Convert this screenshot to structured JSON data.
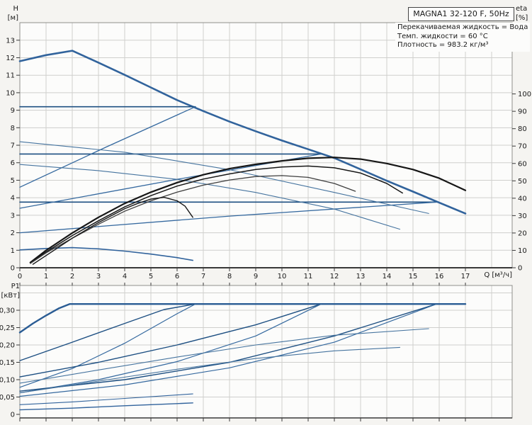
{
  "header": {
    "title": "MAGNA1 32-120 F, 50Hz",
    "info_lines": [
      "Перекачиваемая жидкость = Вода",
      "Темп. жидкости = 60 °C",
      "Плотность = 983.2 кг/м³"
    ]
  },
  "chart_data": [
    {
      "id": "hq",
      "type": "line",
      "title": "Pump head / efficiency curves",
      "x_axis": {
        "label": "Q [м³/ч]",
        "range": [
          0,
          18.8
        ],
        "ticks": [
          0,
          1,
          2,
          3,
          4,
          5,
          6,
          7,
          8,
          9,
          10,
          11,
          12,
          13,
          14,
          15,
          16,
          17
        ],
        "show_labels": true
      },
      "y_left": {
        "label": "H",
        "unit": "[м]",
        "range": [
          0,
          14
        ],
        "ticks": [
          [
            0,
            "0"
          ],
          [
            1,
            "1"
          ],
          [
            2,
            "2"
          ],
          [
            3,
            "3"
          ],
          [
            4,
            "4"
          ],
          [
            5,
            "5"
          ],
          [
            6,
            "6"
          ],
          [
            7,
            "7"
          ],
          [
            8,
            "8"
          ],
          [
            9,
            "9"
          ],
          [
            10,
            "10"
          ],
          [
            11,
            "11"
          ],
          [
            12,
            "12"
          ],
          [
            13,
            "13"
          ]
        ]
      },
      "y_right": {
        "label": "eta",
        "unit": "[%]",
        "range": [
          0,
          141
        ],
        "ticks": [
          [
            0,
            "0"
          ],
          [
            10,
            "10"
          ],
          [
            20,
            "20"
          ],
          [
            30,
            "30"
          ],
          [
            40,
            "40"
          ],
          [
            50,
            "50"
          ],
          [
            60,
            "60"
          ],
          [
            70,
            "70"
          ],
          [
            80,
            "80"
          ],
          [
            90,
            "90"
          ],
          [
            100,
            "100"
          ]
        ]
      },
      "grid": true,
      "series": [
        {
          "name": "max-speed",
          "axis": "left",
          "color": "#31639c",
          "width": 2.6,
          "points": [
            [
              0,
              11.8
            ],
            [
              1,
              12.15
            ],
            [
              2,
              12.4
            ],
            [
              3,
              11.72
            ],
            [
              4,
              11.02
            ],
            [
              5,
              10.3
            ],
            [
              6,
              9.58
            ],
            [
              7,
              8.95
            ],
            [
              8,
              8.35
            ],
            [
              9,
              7.8
            ],
            [
              10,
              7.27
            ],
            [
              11,
              6.77
            ],
            [
              12,
              6.27
            ],
            [
              13,
              5.62
            ],
            [
              14,
              4.97
            ],
            [
              15,
              4.35
            ],
            [
              16,
              3.72
            ],
            [
              17,
              3.1
            ]
          ]
        },
        {
          "name": "min-speed",
          "axis": "left",
          "color": "#31639c",
          "width": 1.6,
          "points": [
            [
              0,
              1.02
            ],
            [
              1,
              1.1
            ],
            [
              2,
              1.15
            ],
            [
              3,
              1.08
            ],
            [
              4,
              0.95
            ],
            [
              5,
              0.78
            ],
            [
              6,
              0.58
            ],
            [
              6.6,
              0.42
            ]
          ]
        },
        {
          "name": "const-pressure-9.2",
          "axis": "left",
          "color": "#1d4f82",
          "width": 1.6,
          "points": [
            [
              0,
              9.2
            ],
            [
              6.7,
              9.2
            ]
          ]
        },
        {
          "name": "const-pressure-6.5",
          "axis": "left",
          "color": "#1d4f82",
          "width": 1.6,
          "points": [
            [
              0,
              6.5
            ],
            [
              11.5,
              6.5
            ]
          ]
        },
        {
          "name": "const-pressure-3.75",
          "axis": "left",
          "color": "#1d4f82",
          "width": 1.6,
          "points": [
            [
              0,
              3.75
            ],
            [
              15.9,
              3.75
            ]
          ]
        },
        {
          "name": "prop-pressure-9.2",
          "axis": "left",
          "color": "#35699f",
          "width": 1.3,
          "points": [
            [
              0,
              4.6
            ],
            [
              3.3,
              6.9
            ],
            [
              6.7,
              9.2
            ]
          ]
        },
        {
          "name": "prop-pressure-6.5",
          "axis": "left",
          "color": "#35699f",
          "width": 1.3,
          "points": [
            [
              0,
              3.4
            ],
            [
              6,
              5.05
            ],
            [
              11.5,
              6.5
            ]
          ]
        },
        {
          "name": "prop-pressure-3.75",
          "axis": "left",
          "color": "#35699f",
          "width": 1.3,
          "points": [
            [
              0,
              2.0
            ],
            [
              8,
              2.95
            ],
            [
              15.9,
              3.75
            ]
          ]
        },
        {
          "name": "speed-curve-ii",
          "axis": "left",
          "color": "#46749f",
          "width": 1.1,
          "points": [
            [
              0,
              5.9
            ],
            [
              3,
              5.55
            ],
            [
              6,
              5.05
            ],
            [
              9,
              4.3
            ],
            [
              12,
              3.35
            ],
            [
              14.5,
              2.2
            ]
          ]
        },
        {
          "name": "speed-curve-iii",
          "axis": "left",
          "color": "#46749f",
          "width": 1.1,
          "points": [
            [
              0,
              7.2
            ],
            [
              4,
              6.6
            ],
            [
              8,
              5.6
            ],
            [
              12,
              4.3
            ],
            [
              15.6,
              3.1
            ]
          ]
        },
        {
          "name": "efficiency-max",
          "axis": "right",
          "color": "#161616",
          "width": 2.2,
          "points": [
            [
              0.4,
              3
            ],
            [
              1,
              10
            ],
            [
              2,
              20
            ],
            [
              3,
              29
            ],
            [
              4,
              37
            ],
            [
              5,
              43.5
            ],
            [
              6,
              49
            ],
            [
              7,
              53.5
            ],
            [
              8,
              57
            ],
            [
              9,
              59.5
            ],
            [
              10,
              61.5
            ],
            [
              11,
              63
            ],
            [
              12,
              63.5
            ],
            [
              13,
              62.5
            ],
            [
              14,
              60
            ],
            [
              15,
              56.5
            ],
            [
              16,
              51.5
            ],
            [
              17,
              44.5
            ]
          ]
        },
        {
          "name": "efficiency-2",
          "axis": "right",
          "color": "#161616",
          "width": 1.5,
          "points": [
            [
              0.4,
              3
            ],
            [
              1,
              9
            ],
            [
              2,
              18.5
            ],
            [
              3,
              27
            ],
            [
              4,
              35
            ],
            [
              5,
              41.5
            ],
            [
              6,
              47
            ],
            [
              7,
              51
            ],
            [
              8,
              54
            ],
            [
              9,
              56.5
            ],
            [
              10,
              58
            ],
            [
              11,
              58.5
            ],
            [
              12,
              57.5
            ],
            [
              13,
              54.5
            ],
            [
              14,
              48.5
            ],
            [
              14.6,
              43
            ]
          ]
        },
        {
          "name": "efficiency-3",
          "axis": "right",
          "color": "#3f3f3f",
          "width": 1.3,
          "points": [
            [
              0.4,
              2.5
            ],
            [
              1,
              8.5
            ],
            [
              2,
              17
            ],
            [
              3,
              25
            ],
            [
              4,
              32.5
            ],
            [
              5,
              38.5
            ],
            [
              6,
              43.5
            ],
            [
              7,
              47.5
            ],
            [
              8,
              50.5
            ],
            [
              9,
              52.5
            ],
            [
              10,
              53
            ],
            [
              11,
              52
            ],
            [
              12,
              48.5
            ],
            [
              12.8,
              44
            ]
          ]
        },
        {
          "name": "efficiency-min",
          "axis": "right",
          "color": "#161616",
          "width": 1.4,
          "points": [
            [
              0.5,
              2
            ],
            [
              1,
              7
            ],
            [
              1.5,
              12
            ],
            [
              2,
              17
            ],
            [
              2.5,
              21.5
            ],
            [
              3,
              26
            ],
            [
              3.5,
              30
            ],
            [
              4,
              34
            ],
            [
              4.5,
              37
            ],
            [
              5,
              39.5
            ],
            [
              5.5,
              40.5
            ],
            [
              6,
              38.5
            ],
            [
              6.3,
              35.5
            ],
            [
              6.6,
              29
            ]
          ]
        }
      ]
    },
    {
      "id": "p1",
      "type": "line",
      "title": "Power input P1",
      "x_axis": {
        "label": "",
        "range": [
          0,
          18.8
        ],
        "ticks": [
          0,
          1,
          2,
          3,
          4,
          5,
          6,
          7,
          8,
          9,
          10,
          11,
          12,
          13,
          14,
          15,
          16,
          17
        ],
        "show_labels": false
      },
      "y_left": {
        "label": "P1",
        "unit": "[кВт]",
        "range": [
          0,
          0.37
        ],
        "ticks": [
          [
            0,
            "0"
          ],
          [
            0.05,
            "0,05"
          ],
          [
            0.1,
            "0,10"
          ],
          [
            0.15,
            "0,15"
          ],
          [
            0.2,
            "0,20"
          ],
          [
            0.25,
            "0,25"
          ],
          [
            0.3,
            "0,30"
          ]
        ],
        "grid_extra": [
          0.35
        ]
      },
      "grid": true,
      "series": [
        {
          "name": "power-max-speed",
          "axis": "left",
          "color": "#2a5c94",
          "width": 2.4,
          "points": [
            [
              0,
              0.236
            ],
            [
              0.5,
              0.262
            ],
            [
              1,
              0.285
            ],
            [
              1.5,
              0.306
            ],
            [
              1.9,
              0.318
            ],
            [
              17,
              0.318
            ]
          ]
        },
        {
          "name": "power-const-pressure-9.2",
          "axis": "left",
          "color": "#1d4f82",
          "width": 1.4,
          "points": [
            [
              0,
              0.155
            ],
            [
              2,
              0.208
            ],
            [
              4,
              0.262
            ],
            [
              5.5,
              0.302
            ],
            [
              6.7,
              0.318
            ]
          ]
        },
        {
          "name": "power-prop-pressure-9.2",
          "axis": "left",
          "color": "#35699f",
          "width": 1.2,
          "points": [
            [
              0,
              0.078
            ],
            [
              2,
              0.132
            ],
            [
              4,
              0.205
            ],
            [
              6,
              0.29
            ],
            [
              6.7,
              0.318
            ]
          ]
        },
        {
          "name": "power-const-pressure-6.5",
          "axis": "left",
          "color": "#1d4f82",
          "width": 1.4,
          "points": [
            [
              0,
              0.108
            ],
            [
              3,
              0.15
            ],
            [
              6,
              0.2
            ],
            [
              9,
              0.258
            ],
            [
              11.5,
              0.318
            ]
          ]
        },
        {
          "name": "power-prop-pressure-6.5",
          "axis": "left",
          "color": "#35699f",
          "width": 1.2,
          "points": [
            [
              0,
              0.062
            ],
            [
              3,
              0.1
            ],
            [
              6,
              0.152
            ],
            [
              9,
              0.226
            ],
            [
              11.5,
              0.318
            ]
          ]
        },
        {
          "name": "power-const-pressure-3.75",
          "axis": "left",
          "color": "#1d4f82",
          "width": 1.4,
          "points": [
            [
              0,
              0.067
            ],
            [
              4,
              0.1
            ],
            [
              8,
              0.15
            ],
            [
              12,
              0.226
            ],
            [
              15.9,
              0.318
            ]
          ]
        },
        {
          "name": "power-prop-pressure-3.75",
          "axis": "left",
          "color": "#35699f",
          "width": 1.2,
          "points": [
            [
              0,
              0.052
            ],
            [
              4,
              0.085
            ],
            [
              8,
              0.134
            ],
            [
              12,
              0.208
            ],
            [
              15.9,
              0.318
            ]
          ]
        },
        {
          "name": "power-speed-ii",
          "axis": "left",
          "color": "#46749f",
          "width": 1.1,
          "points": [
            [
              0,
              0.062
            ],
            [
              3,
              0.096
            ],
            [
              6,
              0.13
            ],
            [
              9,
              0.161
            ],
            [
              12,
              0.183
            ],
            [
              14.5,
              0.193
            ]
          ]
        },
        {
          "name": "power-speed-iii",
          "axis": "left",
          "color": "#46749f",
          "width": 1.1,
          "points": [
            [
              0,
              0.09
            ],
            [
              3,
              0.128
            ],
            [
              6,
              0.165
            ],
            [
              9,
              0.2
            ],
            [
              12,
              0.228
            ],
            [
              15.6,
              0.247
            ]
          ]
        },
        {
          "name": "power-min-speed",
          "axis": "left",
          "color": "#31639c",
          "width": 1.4,
          "points": [
            [
              0,
              0.013
            ],
            [
              2,
              0.018
            ],
            [
              4,
              0.025
            ],
            [
              6,
              0.031
            ],
            [
              6.6,
              0.033
            ]
          ]
        },
        {
          "name": "power-low",
          "axis": "left",
          "color": "#31639c",
          "width": 1.1,
          "points": [
            [
              0,
              0.028
            ],
            [
              2,
              0.036
            ],
            [
              4,
              0.046
            ],
            [
              6,
              0.056
            ],
            [
              6.6,
              0.059
            ]
          ]
        }
      ]
    }
  ]
}
